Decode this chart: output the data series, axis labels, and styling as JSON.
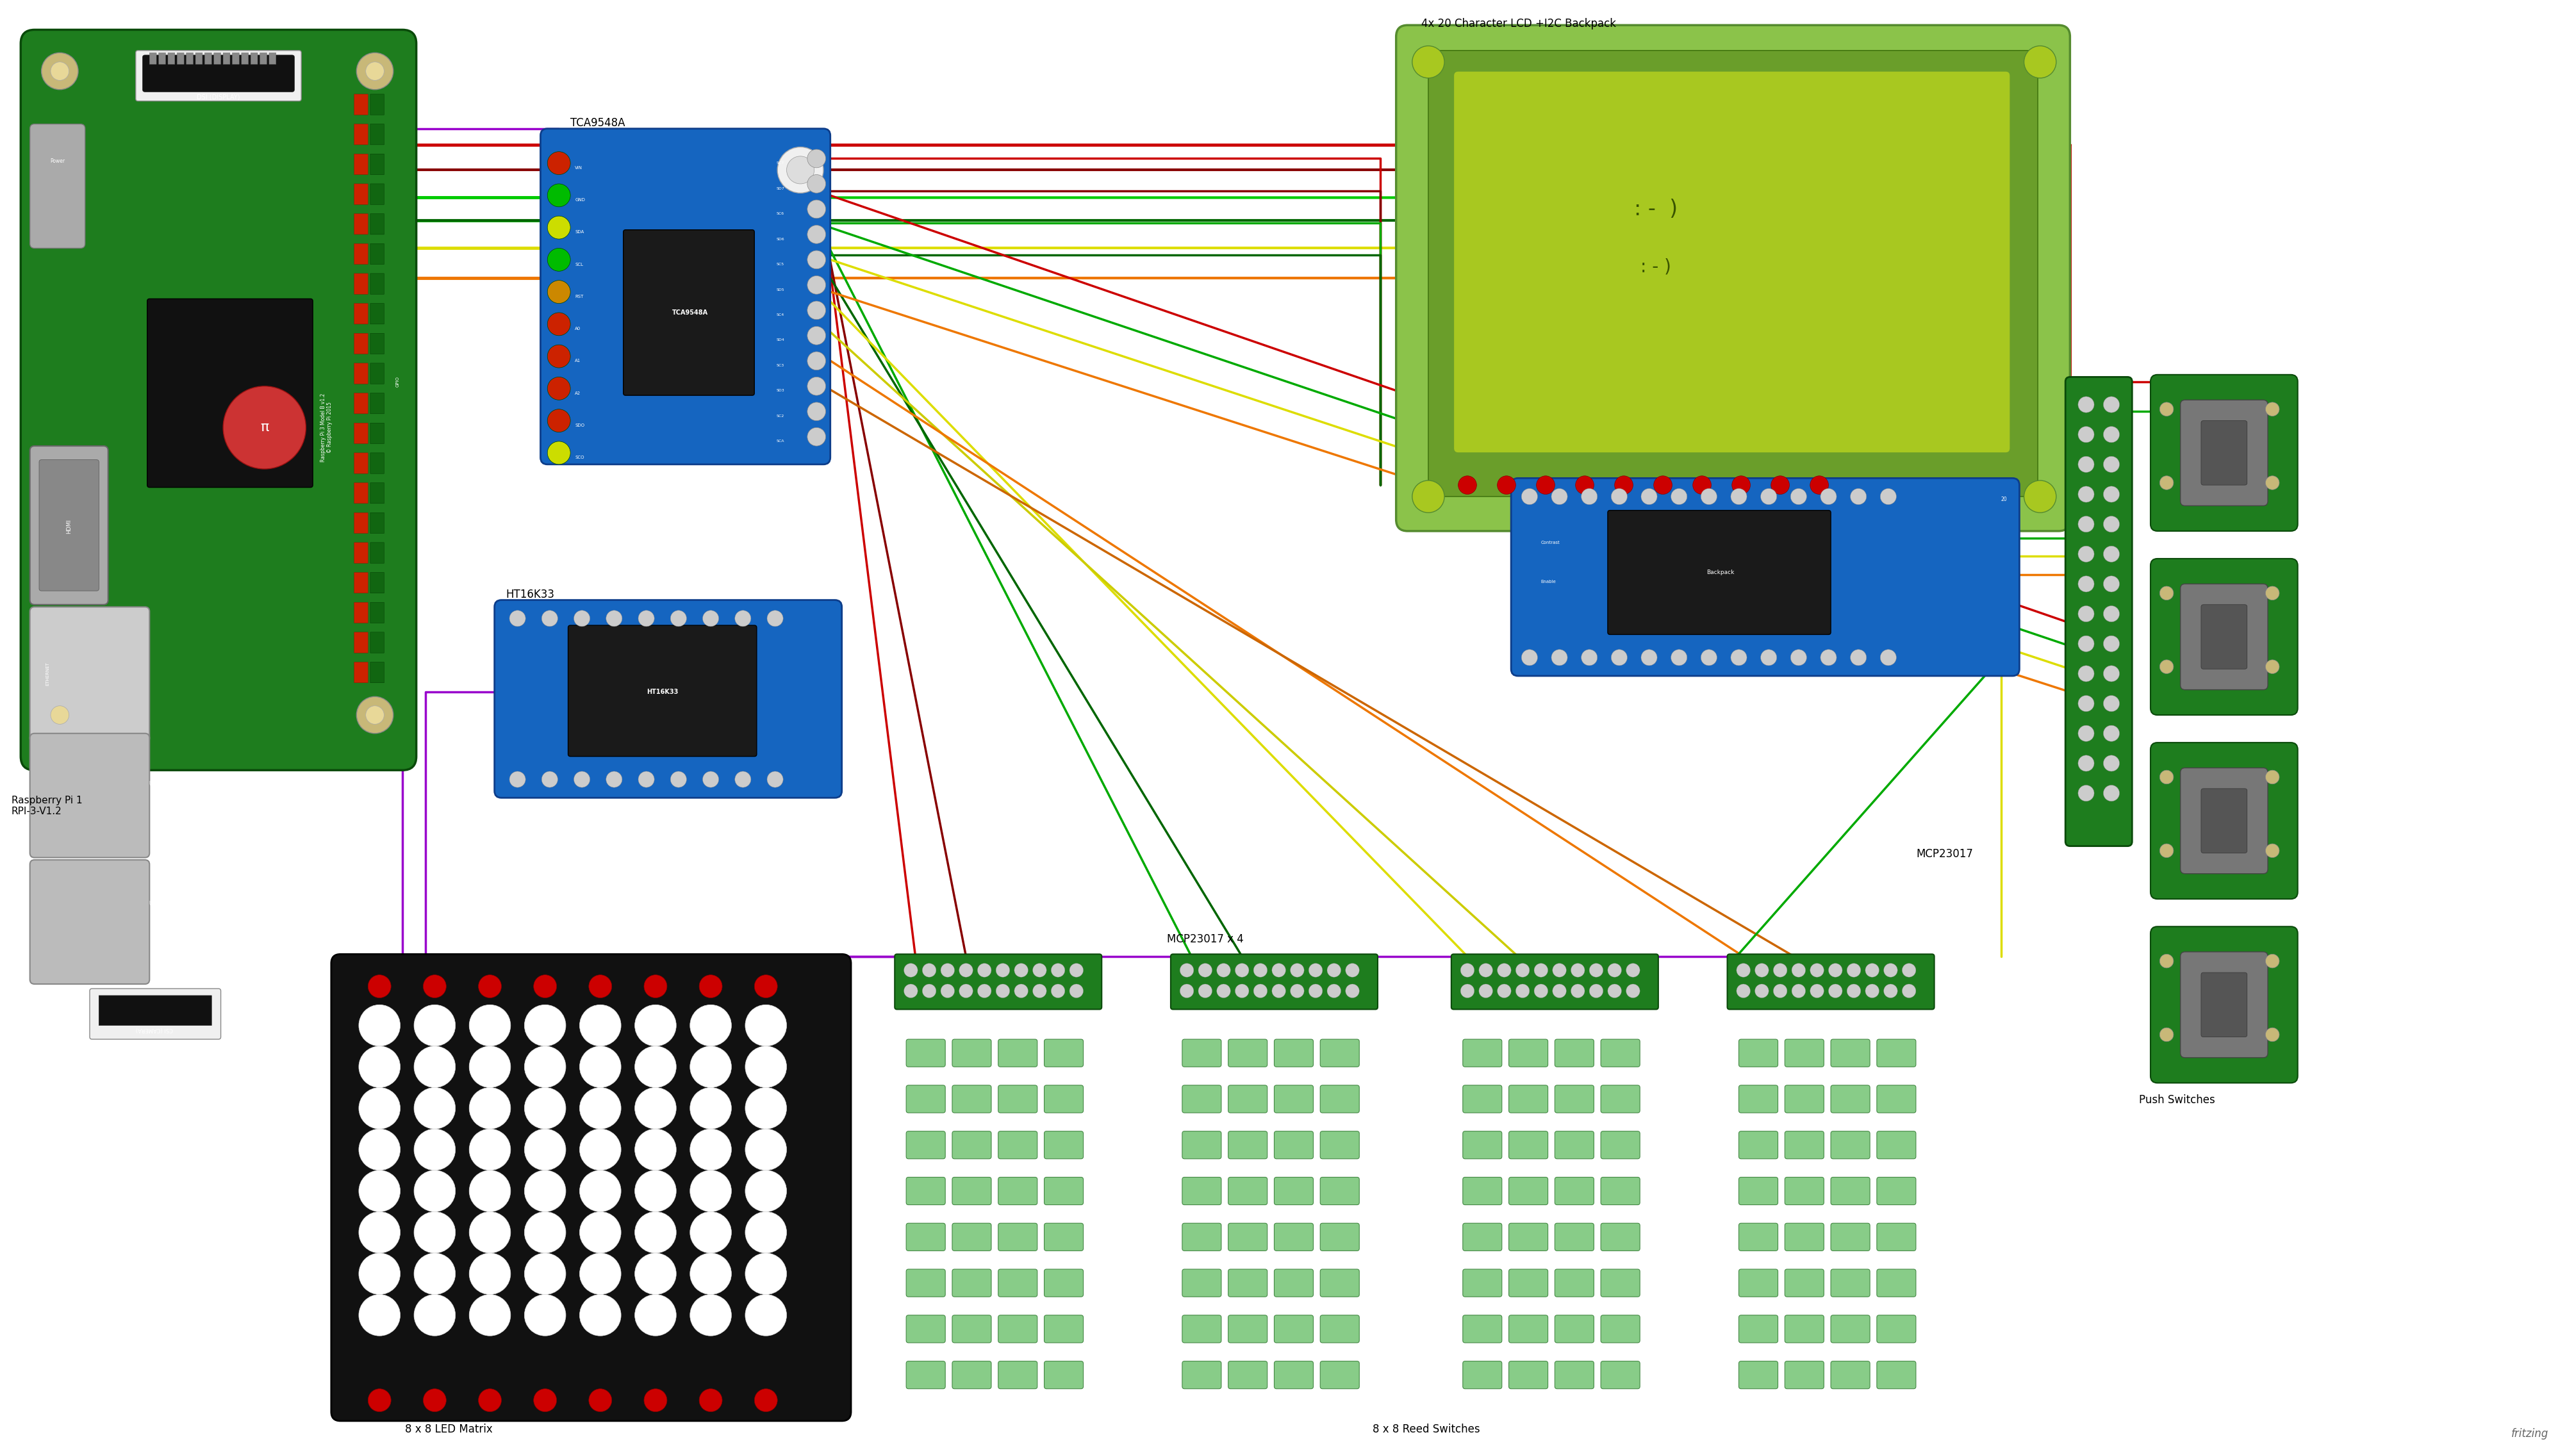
{
  "bg_color": "#ffffff",
  "fritzing_text": "fritzing",
  "wire_colors": {
    "red": "#cc0000",
    "dark_red": "#880000",
    "green": "#00aa00",
    "bright_green": "#00cc00",
    "dark_green": "#006600",
    "yellow": "#dddd00",
    "orange": "#ee7700",
    "purple": "#9900cc",
    "brown": "#8B4513"
  },
  "labels": {
    "tca": "TCA9548A",
    "ht16k33": "HT16K33",
    "lcd": "4x 20 Character LCD +I2C Backpack",
    "mcp": "MCP23017",
    "push": "Push Switches",
    "led_matrix": "8 x 8 LED Matrix",
    "reed": "8 x 8 Reed Switches",
    "mcp4": "MCP23017 x 4",
    "rpi": "Raspberry Pi 1\nRPI-3-V1.2",
    "fritzing": "fritzing"
  }
}
